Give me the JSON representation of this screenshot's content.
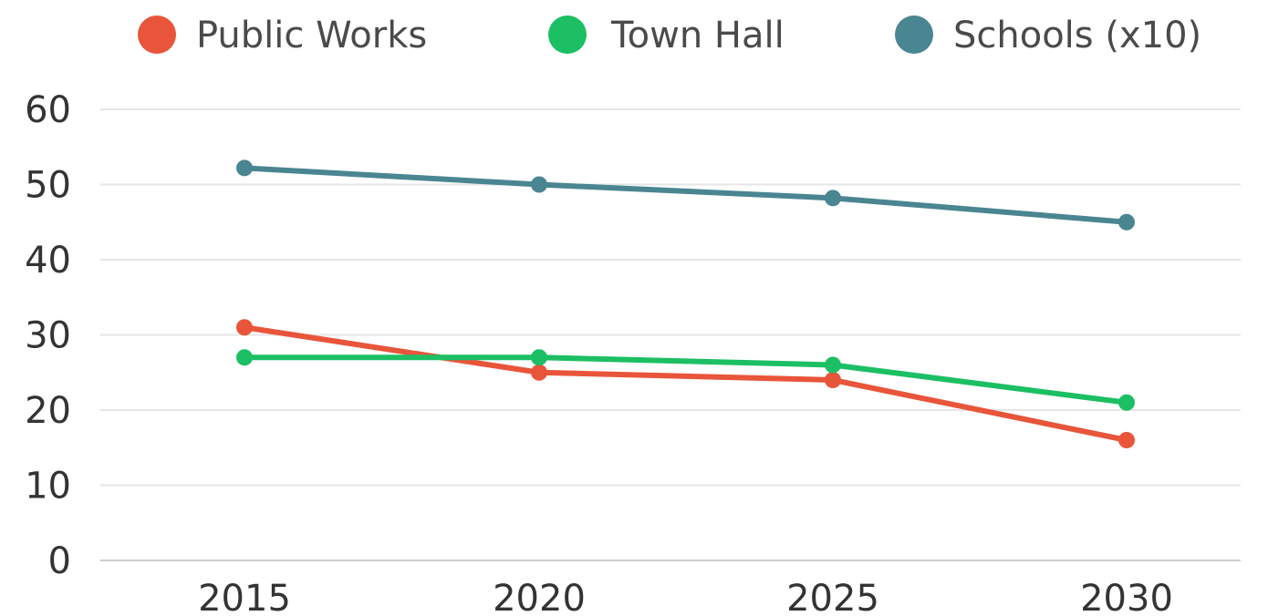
{
  "chart_data": {
    "type": "line",
    "title": "",
    "xlabel": "",
    "ylabel": "",
    "categories": [
      "2015",
      "2020",
      "2025",
      "2030"
    ],
    "ylim": [
      0,
      60
    ],
    "yticks": [
      0,
      10,
      20,
      30,
      40,
      50,
      60
    ],
    "grid": true,
    "legend_position": "top-center",
    "series": [
      {
        "name": "Public Works",
        "color": "#e8553a",
        "values": [
          31,
          25,
          24,
          16
        ]
      },
      {
        "name": "Town Hall",
        "color": "#1cbf63",
        "values": [
          27,
          27,
          26,
          21
        ]
      },
      {
        "name": "Schools (x10)",
        "color": "#4a8592",
        "values": [
          52.2,
          50.0,
          48.2,
          45.0
        ]
      }
    ]
  }
}
